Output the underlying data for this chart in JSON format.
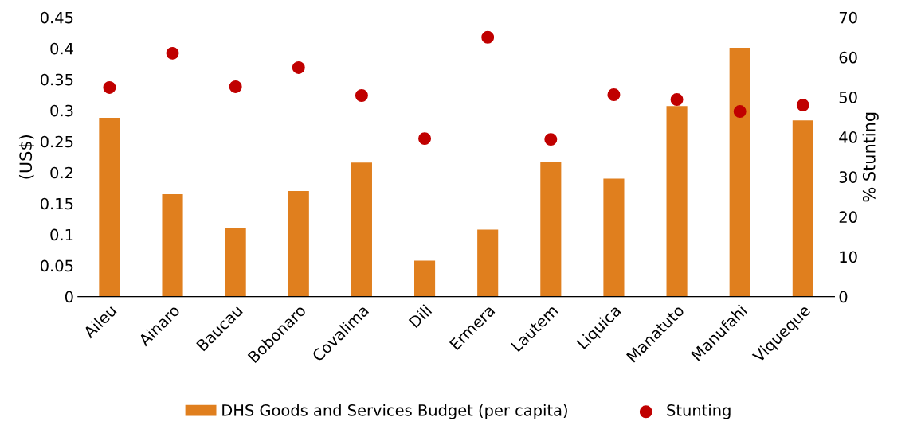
{
  "chart_data": {
    "type": "bar",
    "ylabel": "(US$)",
    "y2label": "% Stunting",
    "categories": [
      "Aileu",
      "Ainaro",
      "Baucau",
      "Bobonaro",
      "Covalima",
      "Dili",
      "Ermera",
      "Lautem",
      "Liquica",
      "Manatuto",
      "Manufahi",
      "Viqueque"
    ],
    "series": [
      {
        "name": "DHS Goods and Services Budget (per capita)",
        "color": "#e07f1e",
        "values": [
          0.288,
          0.165,
          0.111,
          0.17,
          0.216,
          0.058,
          0.108,
          0.217,
          0.19,
          0.307,
          0.401,
          0.284
        ]
      },
      {
        "name": "Stunting",
        "type": "scatter",
        "axis": "y2",
        "color": "#c00000",
        "values": [
          52.4,
          61,
          52.6,
          57.4,
          50.4,
          39.6,
          65,
          39.4,
          50.6,
          49.4,
          46.4,
          48
        ]
      }
    ],
    "ylim": [
      0,
      0.45
    ],
    "yticks": [
      0,
      0.05,
      0.1,
      0.15,
      0.2,
      0.25,
      0.3,
      0.35,
      0.4,
      0.45
    ],
    "y2lim": [
      0,
      70
    ],
    "y2ticks": [
      0,
      10,
      20,
      30,
      40,
      50,
      60,
      70
    ],
    "grid": false,
    "legend": "bottom",
    "marker": "circle"
  }
}
